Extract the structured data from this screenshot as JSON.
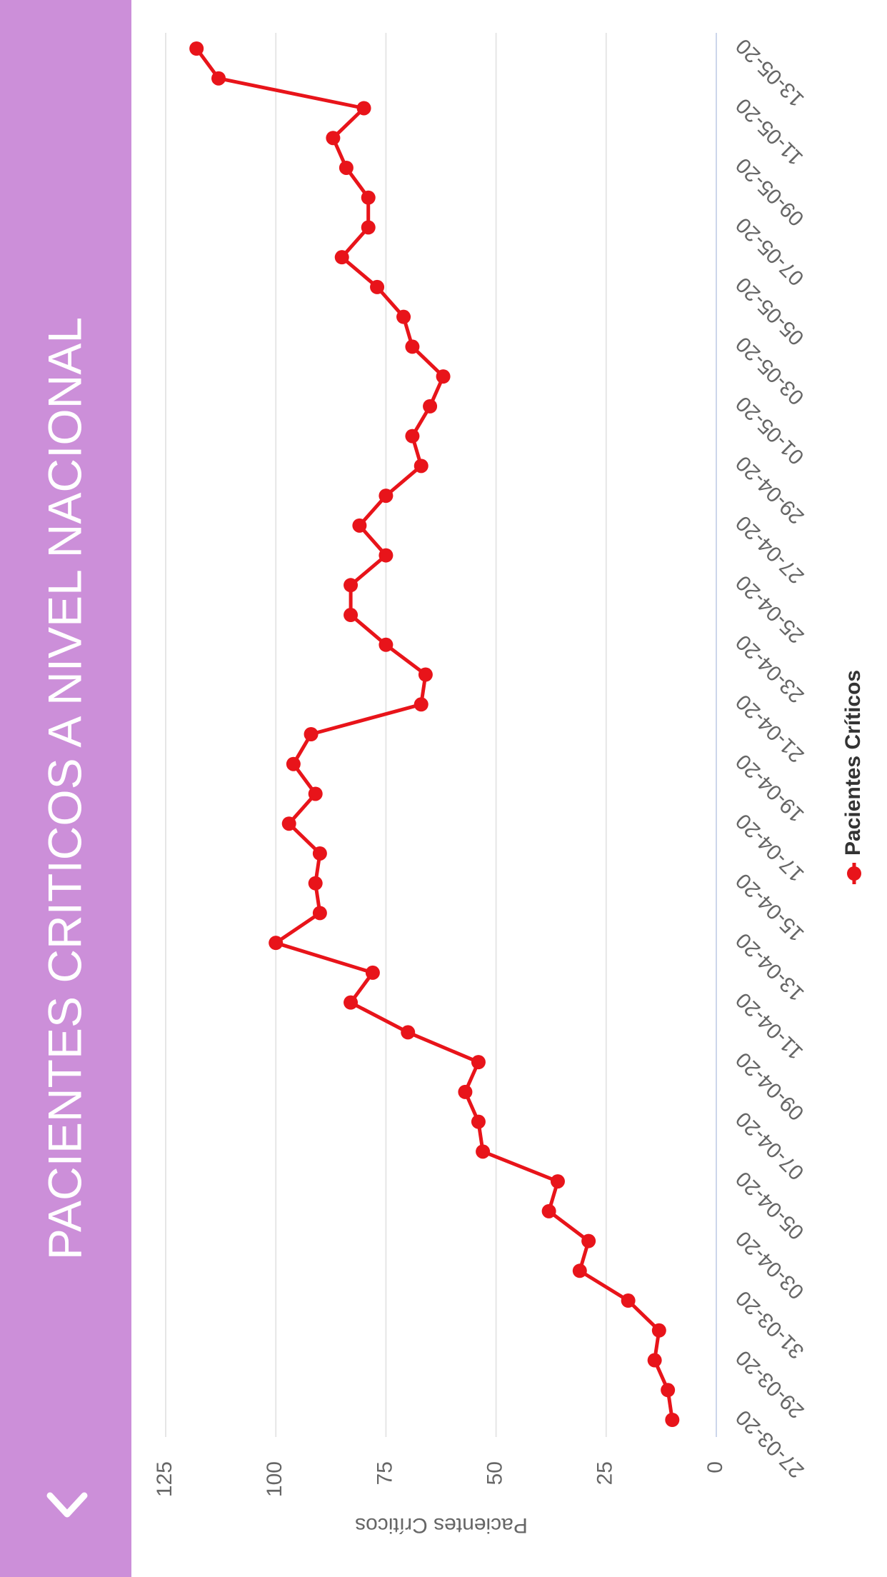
{
  "header": {
    "title": "PACIENTES CRITICOS A NIVEL NACIONAL"
  },
  "chart_data": {
    "type": "line",
    "y_label": "Pacientes Críticos",
    "categories": [
      "27-03-20",
      null,
      "29-03-20",
      null,
      "31-03-20",
      null,
      "03-04-20",
      null,
      "05-04-20",
      null,
      "07-04-20",
      null,
      "09-04-20",
      null,
      "11-04-20",
      null,
      "13-04-20",
      null,
      "15-04-20",
      null,
      "17-04-20",
      null,
      "19-04-20",
      null,
      "21-04-20",
      null,
      "23-04-20",
      null,
      "25-04-20",
      null,
      "27-04-20",
      null,
      "29-04-20",
      null,
      "01-05-20",
      null,
      "03-05-20",
      null,
      "05-05-20",
      null,
      "07-05-20",
      null,
      "09-05-20",
      null,
      "11-05-20",
      null,
      "13-05-20"
    ],
    "series": [
      {
        "name": "Pacientes Críticos",
        "color": "#e8141a",
        "values": [
          10,
          11,
          14,
          13,
          20,
          31,
          29,
          38,
          36,
          53,
          54,
          57,
          54,
          70,
          83,
          78,
          100,
          90,
          91,
          90,
          97,
          91,
          96,
          92,
          67,
          66,
          75,
          83,
          83,
          75,
          81,
          75,
          67,
          69,
          65,
          62,
          69,
          71,
          77,
          85,
          79,
          79,
          84,
          87,
          80,
          113,
          118
        ]
      }
    ],
    "ylim": [
      0,
      125
    ],
    "yticks": [
      0,
      25,
      50,
      75,
      100,
      125
    ],
    "grid": true,
    "legend": "bottom"
  }
}
